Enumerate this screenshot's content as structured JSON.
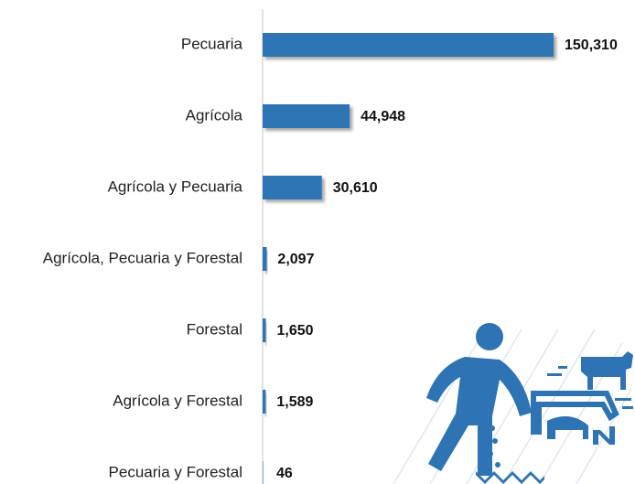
{
  "chart_data": {
    "type": "bar",
    "orientation": "horizontal",
    "categories": [
      "Pecuaria",
      "Agrícola",
      "Agrícola y Pecuaria",
      "Agrícola, Pecuaria y Forestal",
      "Forestal",
      "Agrícola y Forestal",
      "Pecuaria y Forestal"
    ],
    "values": [
      150310,
      44948,
      30610,
      2097,
      1650,
      1589,
      46
    ],
    "value_labels": [
      "150,310",
      "44,948",
      "30,610",
      "2,097",
      "1,650",
      "1,589",
      "46"
    ],
    "color": "#2e74b5"
  }
}
